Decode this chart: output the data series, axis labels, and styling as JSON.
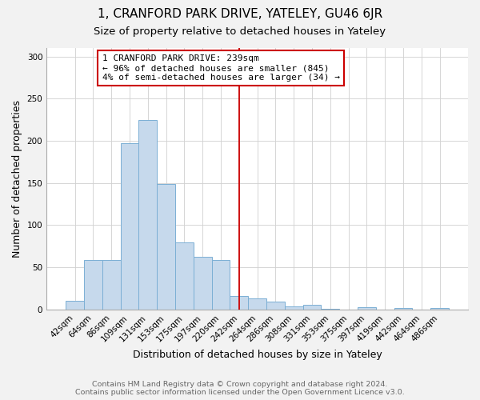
{
  "title": "1, CRANFORD PARK DRIVE, YATELEY, GU46 6JR",
  "subtitle": "Size of property relative to detached houses in Yateley",
  "xlabel": "Distribution of detached houses by size in Yateley",
  "ylabel": "Number of detached properties",
  "bar_labels": [
    "42sqm",
    "64sqm",
    "86sqm",
    "109sqm",
    "131sqm",
    "153sqm",
    "175sqm",
    "197sqm",
    "220sqm",
    "242sqm",
    "264sqm",
    "286sqm",
    "308sqm",
    "331sqm",
    "353sqm",
    "375sqm",
    "397sqm",
    "419sqm",
    "442sqm",
    "464sqm",
    "486sqm"
  ],
  "bar_heights": [
    10,
    59,
    59,
    197,
    225,
    149,
    80,
    63,
    59,
    16,
    13,
    9,
    4,
    6,
    1,
    0,
    3,
    0,
    2,
    0,
    2
  ],
  "bar_color": "#c6d9ec",
  "bar_edge_color": "#7bafd4",
  "vline_x_index": 9,
  "vline_color": "#cc0000",
  "annotation_title": "1 CRANFORD PARK DRIVE: 239sqm",
  "annotation_line1": "← 96% of detached houses are smaller (845)",
  "annotation_line2": "4% of semi-detached houses are larger (34) →",
  "annotation_box_color": "white",
  "annotation_box_edge": "#cc0000",
  "ylim": [
    0,
    310
  ],
  "yticks": [
    0,
    50,
    100,
    150,
    200,
    250,
    300
  ],
  "footer1": "Contains HM Land Registry data © Crown copyright and database right 2024.",
  "footer2": "Contains public sector information licensed under the Open Government Licence v3.0.",
  "bg_color": "#f2f2f2",
  "plot_bg_color": "#ffffff",
  "title_fontsize": 11,
  "subtitle_fontsize": 9.5,
  "axis_label_fontsize": 9,
  "tick_fontsize": 7.5,
  "annotation_fontsize": 8,
  "footer_fontsize": 6.8
}
